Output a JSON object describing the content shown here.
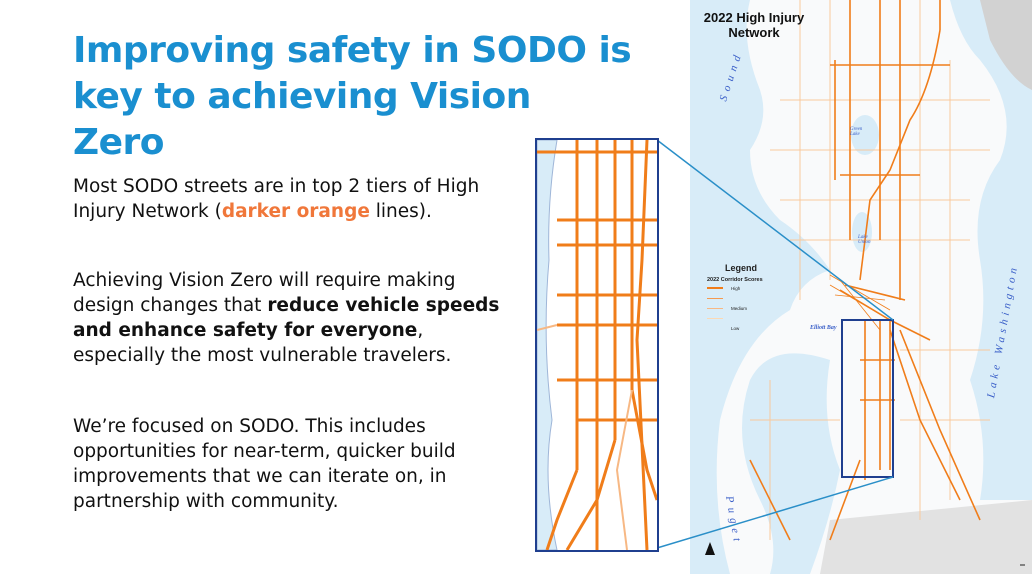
{
  "slide": {
    "title": "Improving safety in SODO is key to achieving Vision Zero",
    "paragraphs": {
      "p1_a": "Most SODO streets are in top 2 tiers of High Injury Network (",
      "p1_highlight": "darker orange",
      "p1_b": " lines).",
      "p2_a": "Achieving Vision Zero will require making design changes that ",
      "p2_bold": "reduce vehicle speeds and enhance safety for everyone",
      "p2_b": ", especially the most vulnerable travelers.",
      "p3": "We’re focused on SODO. This includes opportunities for near-term, quicker build improvements that we can iterate on, in partnership with community."
    },
    "highlight_color": "#f0773a",
    "title_color": "#1a8fd0"
  },
  "map": {
    "title": "2022 High Injury Network",
    "labels": {
      "sound": "Sound",
      "puget": "Puget",
      "green_lake": "Green Lake",
      "lake_union": "Lake Union",
      "elliott_bay": "Elliott Bay",
      "lake_washington": "Lake Washington"
    },
    "legend": {
      "title": "Legend",
      "subtitle": "2022 Corridor Scores",
      "items": [
        "High",
        "",
        "Medium",
        "",
        "Low"
      ]
    },
    "colors": {
      "water": "#d8ecf8",
      "high": "#f07d1a",
      "low": "#fbd9b5",
      "inset_border": "#1f3f8f",
      "connector": "#2a8fc8"
    }
  }
}
